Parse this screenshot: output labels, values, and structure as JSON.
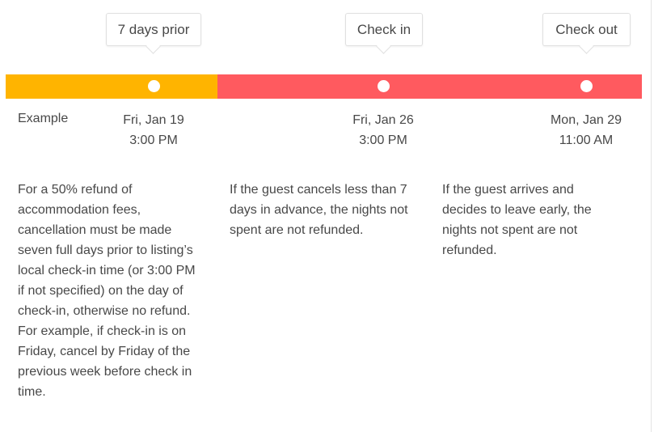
{
  "colors": {
    "prior": "#FFB400",
    "after": "#FF5A5F"
  },
  "example_label": "Example",
  "milestones": [
    {
      "label": "7 days prior",
      "date": "Fri, Jan 19",
      "time": "3:00 PM"
    },
    {
      "label": "Check in",
      "date": "Fri, Jan 26",
      "time": "3:00 PM"
    },
    {
      "label": "Check out",
      "date": "Mon, Jan 29",
      "time": "11:00 AM"
    }
  ],
  "descriptions": [
    "For a 50% refund of accommodation fees, cancellation must be made seven full days prior to listing’s local check-in time (or 3:00 PM if not specified) on the day of check-in, otherwise no refund. For example, if check-in is on Friday, cancel by Friday of the previous week before check in time.",
    "If the guest cancels less than 7 days in advance, the nights not spent are not refunded.",
    "If the guest arrives and decides to leave early, the nights not spent are not refunded."
  ]
}
